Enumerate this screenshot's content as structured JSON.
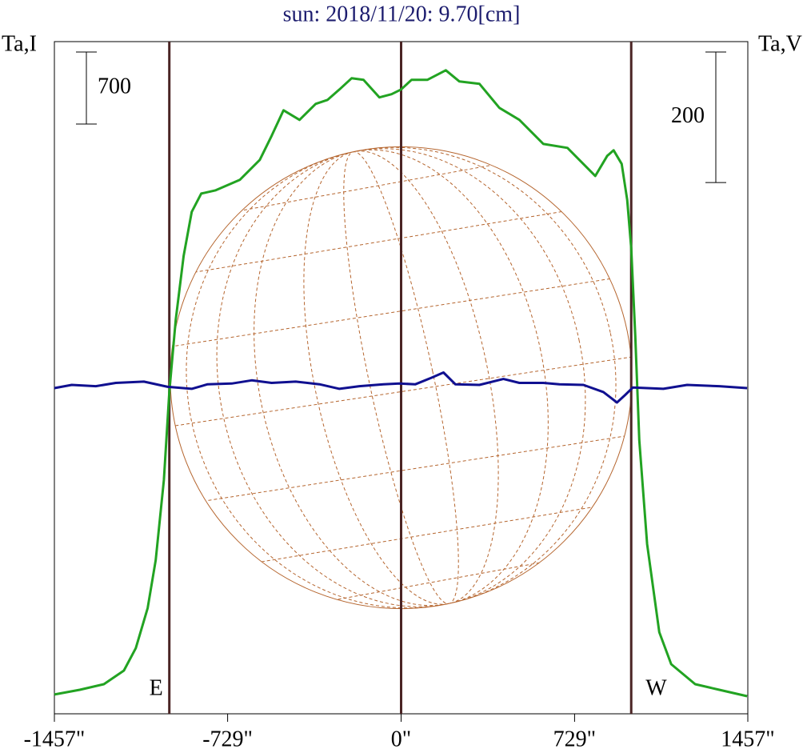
{
  "chart_data": {
    "type": "line",
    "title": "sun: 2018/11/20: 9.70[cm]",
    "y_label": "Ta,I",
    "y2_label": "Ta,V",
    "xlim": [
      -1457,
      1457
    ],
    "xticks": [
      {
        "value": -1457,
        "label": "-1457\""
      },
      {
        "value": -729,
        "label": "-729\""
      },
      {
        "value": 0,
        "label": "0\""
      },
      {
        "value": 729,
        "label": "729\""
      },
      {
        "value": 1457,
        "label": "1457\""
      }
    ],
    "ylim": [
      0,
      6530
    ],
    "y2lim": [
      -500,
      530
    ],
    "scale_bars": [
      {
        "axis": "y",
        "value": 700
      },
      {
        "axis": "y2",
        "value": 200
      }
    ],
    "vlines": [
      -974,
      0,
      967
    ],
    "vline_labels": [
      "E",
      null,
      "W"
    ],
    "vline_color": "#4a2424",
    "disk_radius": 970,
    "disk_color": "#b5652e",
    "series": [
      {
        "name": "I",
        "color": "#22a322",
        "x": [
          -1457,
          -1350,
          -1249,
          -1165,
          -1115,
          -1065,
          -1031,
          -997,
          -974,
          -947,
          -914,
          -880,
          -840,
          -779,
          -678,
          -594,
          -544,
          -494,
          -427,
          -359,
          -309,
          -259,
          -208,
          -158,
          -91,
          -40,
          0,
          44,
          111,
          188,
          245,
          329,
          413,
          497,
          598,
          699,
          816,
          866,
          893,
          927,
          950,
          967,
          984,
          1001,
          1034,
          1085,
          1135,
          1236,
          1337,
          1454
        ],
        "values": [
          187,
          233,
          288,
          420,
          638,
          1026,
          1493,
          2271,
          3126,
          3826,
          4448,
          4876,
          5054,
          5086,
          5187,
          5381,
          5614,
          5863,
          5770,
          5925,
          5964,
          6065,
          6174,
          6159,
          5988,
          6019,
          6065,
          6159,
          6159,
          6252,
          6143,
          6120,
          5886,
          5770,
          5536,
          5498,
          5225,
          5420,
          5474,
          5342,
          4992,
          4526,
          3670,
          2659,
          1649,
          793,
          482,
          288,
          233,
          171
        ]
      },
      {
        "name": "V",
        "color": "#101090",
        "axis": "y2",
        "x": [
          -1457,
          -1384,
          -1283,
          -1199,
          -1081,
          -981,
          -880,
          -813,
          -712,
          -628,
          -544,
          -443,
          -343,
          -259,
          -175,
          -74,
          -7,
          60,
          128,
          178,
          228,
          329,
          430,
          497,
          598,
          665,
          766,
          850,
          907,
          940,
          974,
          1102,
          1202,
          1337,
          1454
        ],
        "values": [
          -1,
          4,
          2,
          7,
          9,
          1,
          -2,
          5,
          6,
          11,
          7,
          9,
          5,
          -2,
          2,
          5,
          6,
          5,
          15,
          23,
          5,
          4,
          13,
          7,
          7,
          5,
          4,
          -7,
          -23,
          -12,
          0,
          -2,
          4,
          2,
          -1
        ]
      }
    ]
  }
}
